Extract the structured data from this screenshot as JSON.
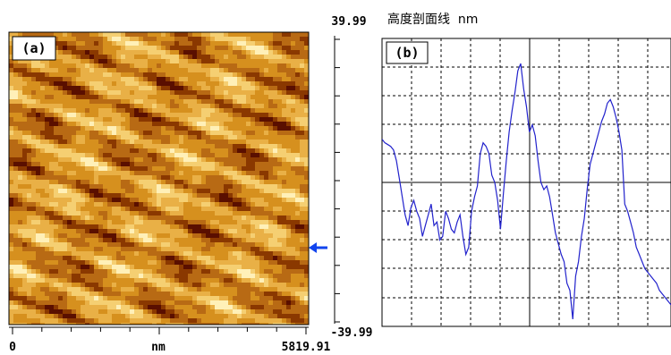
{
  "chart_data": [
    {
      "type": "heatmap",
      "panel_label": "(a)",
      "x_axis": {
        "min_label": "0",
        "unit_label": "nm",
        "max_label": "5819.91"
      },
      "scan_line_marker": "arrow-left-icon",
      "colormap": [
        "#5a0f00",
        "#8a3800",
        "#b86a14",
        "#d6901e",
        "#e9b046",
        "#f5cf72",
        "#fff0b8"
      ]
    },
    {
      "type": "line",
      "panel_label": "(b)",
      "title": "高度剖面线  nm",
      "y_axis": {
        "max_label": "39.99",
        "min_label": "-39.99",
        "ylim": [
          -39.99,
          39.99
        ]
      },
      "grid": true,
      "line_color": "#2222cc",
      "x": [
        0,
        1,
        2,
        3,
        4,
        5,
        6,
        7,
        8,
        9,
        10,
        11,
        12,
        13,
        14,
        15,
        16,
        17,
        18,
        19,
        20,
        21,
        22,
        23,
        24,
        25,
        26,
        27,
        28,
        29,
        30,
        31,
        32,
        33,
        34,
        35,
        36,
        37,
        38,
        39,
        40,
        41,
        42,
        43,
        44,
        45,
        46,
        47,
        48,
        49,
        50,
        51,
        52,
        53,
        54,
        55,
        56,
        57,
        58,
        59,
        60,
        61,
        62,
        63,
        64,
        65,
        66,
        67,
        68,
        69,
        70,
        71,
        72,
        73,
        74,
        75,
        76,
        77,
        78,
        79,
        80,
        81,
        82,
        83,
        84,
        85,
        86,
        87,
        88,
        89,
        90,
        91,
        92,
        93,
        94,
        95,
        96,
        97,
        98,
        99,
        100
      ],
      "y": [
        12,
        11,
        10.5,
        10,
        9,
        6,
        1,
        -4,
        -9,
        -12,
        -7,
        -5,
        -8,
        -10,
        -15,
        -12,
        -9,
        -6,
        -12,
        -11,
        -16,
        -15,
        -8,
        -10,
        -13,
        -14,
        -11,
        -9,
        -15,
        -20,
        -18,
        -8,
        -4,
        -1,
        8,
        11,
        10,
        8,
        2,
        0,
        -5,
        -13,
        -3,
        6,
        14,
        20,
        25,
        31,
        33,
        26,
        21,
        14,
        16,
        13,
        6,
        0,
        -2,
        -1,
        -4,
        -9,
        -14,
        -17,
        -20,
        -22,
        -28,
        -30,
        -38,
        -26,
        -22,
        -15,
        -10,
        -2,
        5,
        8,
        11,
        14,
        17,
        19,
        22,
        23,
        21,
        18,
        14,
        9,
        -6,
        -8,
        -11,
        -14,
        -18,
        -20,
        -22,
        -24,
        -25,
        -26,
        -27,
        -28,
        -30,
        -31,
        -32,
        -33,
        -34
      ]
    }
  ]
}
